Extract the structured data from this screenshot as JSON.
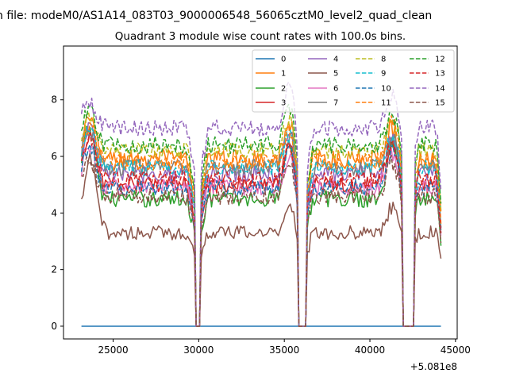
{
  "chart_data": {
    "type": "line",
    "suptitle": "n file: modeM0/AS1A14_083T03_9000006548_56065cztM0_level2_quad_clean",
    "title": "Quadrant 3 module wise count rates with 100.0s bins.",
    "xlabel": "",
    "ylabel": "",
    "x_offset_label": "+5.081e8",
    "xlim": [
      22100,
      45100
    ],
    "ylim": [
      -0.45,
      9.9
    ],
    "x_ticks": [
      25000,
      30000,
      35000,
      40000,
      45000
    ],
    "x_tick_labels": [
      "25000",
      "30000",
      "35000",
      "40000",
      "45000"
    ],
    "y_ticks": [
      0,
      2,
      4,
      6,
      8
    ],
    "y_tick_labels": [
      "0",
      "2",
      "4",
      "6",
      "8"
    ],
    "grid": false,
    "legend_position": "top-right",
    "legend_columns": 4,
    "x_range": [
      23150,
      44150
    ],
    "bin_seconds": 100,
    "gaps": [
      [
        29800,
        30050
      ],
      [
        35850,
        36300
      ],
      [
        41950,
        42550
      ]
    ],
    "series": [
      {
        "name": "0",
        "color": "#1f77b4",
        "dash": "solid",
        "level": 0.0,
        "features": [],
        "noise": 0.0
      },
      {
        "name": "1",
        "color": "#ff7f0e",
        "dash": "solid",
        "level": 5.9,
        "features": [
          [
            23600,
            1.4,
            500
          ],
          [
            35350,
            1.2,
            450
          ],
          [
            41300,
            1.1,
            450
          ]
        ],
        "noise": 0.35
      },
      {
        "name": "2",
        "color": "#2ca02c",
        "dash": "solid",
        "level": 4.5,
        "features": [
          [
            23600,
            2.5,
            500
          ],
          [
            35300,
            2.0,
            450
          ],
          [
            41300,
            2.0,
            450
          ]
        ],
        "noise": 0.3
      },
      {
        "name": "3",
        "color": "#d62728",
        "dash": "solid",
        "level": 5.0,
        "features": [
          [
            23600,
            1.8,
            500
          ],
          [
            35300,
            1.5,
            450
          ],
          [
            41300,
            1.6,
            450
          ]
        ],
        "noise": 0.3
      },
      {
        "name": "4",
        "color": "#9467bd",
        "dash": "solid",
        "level": 5.4,
        "features": [
          [
            23600,
            1.6,
            500
          ],
          [
            35300,
            1.4,
            450
          ],
          [
            41300,
            1.3,
            450
          ]
        ],
        "noise": 0.3
      },
      {
        "name": "5",
        "color": "#8c564b",
        "dash": "solid",
        "level": 3.3,
        "features": [
          [
            23650,
            2.6,
            500
          ],
          [
            35300,
            1.0,
            450
          ],
          [
            41300,
            0.9,
            450
          ]
        ],
        "noise": 0.25
      },
      {
        "name": "6",
        "color": "#e377c2",
        "dash": "solid",
        "level": 4.9,
        "features": [
          [
            23600,
            1.5,
            500
          ],
          [
            35300,
            1.1,
            450
          ],
          [
            41300,
            1.2,
            450
          ]
        ],
        "noise": 0.3
      },
      {
        "name": "7",
        "color": "#7f7f7f",
        "dash": "solid",
        "level": 5.6,
        "features": [
          [
            23600,
            1.4,
            500
          ],
          [
            35300,
            1.1,
            450
          ],
          [
            41300,
            1.0,
            450
          ]
        ],
        "noise": 0.3
      },
      {
        "name": "8",
        "color": "#bcbd22",
        "dash": "dashed",
        "level": 6.2,
        "features": [
          [
            23600,
            1.2,
            500
          ],
          [
            35300,
            1.2,
            450
          ],
          [
            41300,
            1.1,
            450
          ]
        ],
        "noise": 0.3
      },
      {
        "name": "9",
        "color": "#17becf",
        "dash": "dashed",
        "level": 5.6,
        "features": [
          [
            23600,
            1.3,
            500
          ],
          [
            35300,
            1.1,
            450
          ],
          [
            41300,
            1.0,
            450
          ]
        ],
        "noise": 0.3
      },
      {
        "name": "10",
        "color": "#1f77b4",
        "dash": "dashed",
        "level": 4.9,
        "features": [
          [
            23600,
            1.5,
            500
          ],
          [
            35300,
            1.2,
            450
          ],
          [
            41300,
            1.2,
            450
          ]
        ],
        "noise": 0.3
      },
      {
        "name": "11",
        "color": "#ff7f0e",
        "dash": "dashed",
        "level": 5.8,
        "features": [
          [
            23600,
            1.3,
            500
          ],
          [
            35300,
            1.1,
            450
          ],
          [
            41300,
            1.5,
            450
          ]
        ],
        "noise": 0.3
      },
      {
        "name": "12",
        "color": "#2ca02c",
        "dash": "dashed",
        "level": 6.4,
        "features": [
          [
            23600,
            1.2,
            500
          ],
          [
            35300,
            1.3,
            450
          ],
          [
            41300,
            1.1,
            450
          ]
        ],
        "noise": 0.3
      },
      {
        "name": "13",
        "color": "#d62728",
        "dash": "dashed",
        "level": 5.2,
        "features": [
          [
            23600,
            1.4,
            500
          ],
          [
            35300,
            1.2,
            450
          ],
          [
            41300,
            1.3,
            450
          ]
        ],
        "noise": 0.3
      },
      {
        "name": "14",
        "color": "#9467bd",
        "dash": "dashed",
        "level": 7.0,
        "features": [
          [
            23600,
            1.0,
            500
          ],
          [
            35300,
            1.6,
            450
          ],
          [
            41300,
            1.2,
            450
          ]
        ],
        "noise": 0.3
      },
      {
        "name": "15",
        "color": "#8c564b",
        "dash": "dashed",
        "level": 4.6,
        "features": [
          [
            23600,
            1.4,
            500
          ],
          [
            35300,
            1.1,
            450
          ],
          [
            41300,
            1.2,
            450
          ]
        ],
        "noise": 0.3
      }
    ]
  }
}
